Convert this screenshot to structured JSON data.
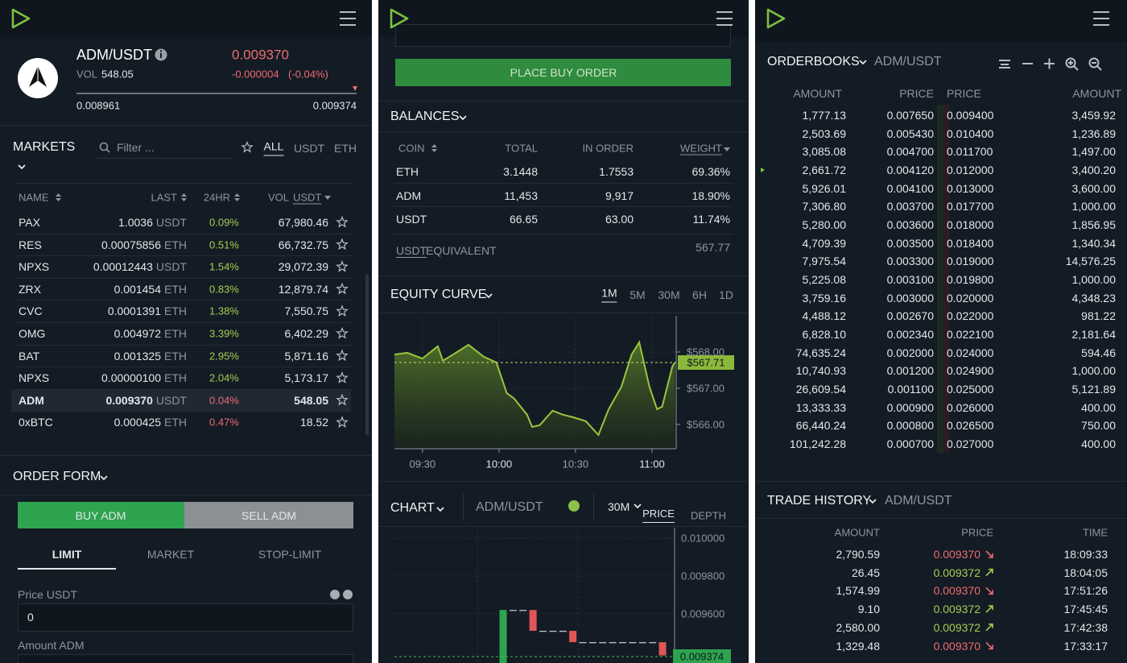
{
  "market_panel": {
    "ticker": {
      "pair": "ADM/USDT",
      "vol_label": "VOL",
      "volume": "548.05",
      "last": "0.009370",
      "change": "-0.000004",
      "change_pct": "(-0.04%)",
      "low": "0.008961",
      "high": "0.009374"
    },
    "markets": {
      "title": "MARKETS",
      "filter": "Filter ...",
      "tabs": [
        "ALL",
        "USDT",
        "ETH"
      ],
      "columns": [
        "NAME",
        "LAST",
        "24HR",
        "VOL"
      ],
      "vol_unit": "USDT",
      "selected": 8,
      "rows": [
        {
          "name": "PAX",
          "last": "1.0036",
          "unit": "USDT",
          "change": "0.09%",
          "volume": "67,980.46",
          "trend": "up"
        },
        {
          "name": "RES",
          "last": "0.00075856",
          "unit": "ETH",
          "change": "0.51%",
          "volume": "66,732.75",
          "trend": "up"
        },
        {
          "name": "NPXS",
          "last": "0.00012443",
          "unit": "USDT",
          "change": "1.54%",
          "volume": "29,072.39",
          "trend": "up"
        },
        {
          "name": "ZRX",
          "last": "0.001454",
          "unit": "ETH",
          "change": "0.83%",
          "volume": "12,879.74",
          "trend": "up"
        },
        {
          "name": "CVC",
          "last": "0.0001391",
          "unit": "ETH",
          "change": "1.38%",
          "volume": "7,550.75",
          "trend": "up"
        },
        {
          "name": "OMG",
          "last": "0.004972",
          "unit": "ETH",
          "change": "3.39%",
          "volume": "6,402.29",
          "trend": "up"
        },
        {
          "name": "BAT",
          "last": "0.001325",
          "unit": "ETH",
          "change": "2.95%",
          "volume": "5,871.16",
          "trend": "up"
        },
        {
          "name": "NPXS",
          "last": "0.00000100",
          "unit": "ETH",
          "change": "2.04%",
          "volume": "5,173.17",
          "trend": "up"
        },
        {
          "name": "ADM",
          "last": "0.009370",
          "unit": "USDT",
          "change": "0.04%",
          "volume": "548.05",
          "trend": "dn"
        },
        {
          "name": "0xBTC",
          "last": "0.000425",
          "unit": "ETH",
          "change": "0.47%",
          "volume": "18.52",
          "trend": "dn"
        }
      ]
    },
    "order_form": {
      "title": "ORDER FORM",
      "buy": "BUY ADM",
      "sell": "SELL ADM",
      "types": [
        "LIMIT",
        "MARKET",
        "STOP-LIMIT"
      ],
      "price_label": "Price USDT",
      "price": "0",
      "amount_label": "Amount ADM"
    }
  },
  "trade_panel": {
    "place_order": "PLACE BUY ORDER",
    "balances": {
      "title": "BALANCES",
      "columns": [
        "COIN",
        "TOTAL",
        "IN ORDER",
        "WEIGHT"
      ],
      "rows": [
        [
          "ETH",
          "3.1448",
          "1.7553",
          "69.36%"
        ],
        [
          "ADM",
          "11,453",
          "9,917",
          "18.90%"
        ],
        [
          "USDT",
          "66.65",
          "63.00",
          "11.74%"
        ]
      ],
      "equivalent_unit": "USDT",
      "equivalent_label": "EQUIVALENT",
      "equivalent": "567.77"
    },
    "equity_curve": {
      "title": "EQUITY CURVE",
      "ranges": [
        "1M",
        "5M",
        "30M",
        "6H",
        "1D"
      ],
      "chart": {
        "type": "line",
        "x": [
          559,
          564,
          570,
          576,
          578,
          582,
          588,
          594,
          599,
          603,
          606,
          611,
          613,
          616,
          621,
          625,
          629,
          634,
          639,
          643,
          648,
          652,
          655,
          659,
          662,
          664,
          668,
          669
        ],
        "values": [
          567.93,
          567.98,
          567.82,
          568.16,
          567.76,
          567.93,
          568.2,
          567.87,
          567.71,
          566.87,
          566.71,
          566.27,
          565.93,
          565.98,
          566.38,
          566.27,
          566.2,
          566.09,
          565.71,
          566.42,
          567.04,
          567.93,
          568.27,
          567.04,
          566.42,
          566.49,
          567.6,
          567.71
        ],
        "xlim": [
          559,
          669.5
        ],
        "ylim": [
          565.33,
          569
        ],
        "xticks": [
          {
            "value": 570,
            "label": "09:30"
          },
          {
            "value": 600,
            "label": "10:00"
          },
          {
            "value": 630,
            "label": "10:30"
          },
          {
            "value": 660,
            "label": "11:00"
          }
        ],
        "yticks": [
          {
            "value": 566,
            "label": "$566.00"
          },
          {
            "value": 567,
            "label": "$567.00"
          },
          {
            "value": 568,
            "label": "$568.00"
          }
        ],
        "current": {
          "value": 567.71,
          "label": "$567.71"
        },
        "color": "#9bc53d"
      }
    },
    "chart": {
      "title": "CHART",
      "pair": "ADM/USDT",
      "interval": "30M",
      "views": [
        "PRICE",
        "DEPTH"
      ],
      "candles": {
        "type": "candlestick",
        "open": [
          0.00934,
          0.00962,
          0.00962,
          0.00962,
          0.00951,
          0.00951,
          0.00951,
          0.00951,
          0.00945,
          0.00945,
          0.00945,
          0.00945,
          0.00945,
          0.00945,
          0.00945,
          0.00945,
          0.00945
        ],
        "close": [
          0.00962,
          0.00962,
          0.00962,
          0.00951,
          0.00951,
          0.00951,
          0.00951,
          0.00945,
          0.00945,
          0.00945,
          0.00945,
          0.00945,
          0.00945,
          0.00945,
          0.00945,
          0.00945,
          0.00938
        ],
        "ylim": [
          0.00934,
          0.010055
        ],
        "yticks": [
          {
            "value": 0.0096,
            "label": "0.009600"
          },
          {
            "value": 0.0098,
            "label": "0.009800"
          },
          {
            "value": 0.01,
            "label": "0.010000"
          }
        ],
        "current": {
          "value": 0.009374,
          "label": "0.009374"
        }
      }
    }
  },
  "book_panel": {
    "orderbook": {
      "title": "ORDERBOOKS",
      "pair": "ADM/USDT",
      "columns": [
        "AMOUNT",
        "PRICE",
        "PRICE",
        "AMOUNT"
      ],
      "rows": [
        [
          "1,777.13",
          "0.007650",
          "0.009400",
          "3,459.92"
        ],
        [
          "2,503.69",
          "0.005430",
          "0.010400",
          "1,236.89"
        ],
        [
          "3,085.08",
          "0.004700",
          "0.011700",
          "1,497.00"
        ],
        [
          "2,661.72",
          "0.004120",
          "0.012000",
          "3,400.20"
        ],
        [
          "5,926.01",
          "0.004100",
          "0.013000",
          "3,600.00"
        ],
        [
          "7,306.80",
          "0.003700",
          "0.017700",
          "1,000.00"
        ],
        [
          "5,280.00",
          "0.003600",
          "0.018000",
          "1,856.95"
        ],
        [
          "4,709.39",
          "0.003500",
          "0.018400",
          "1,340.34"
        ],
        [
          "7,975.54",
          "0.003300",
          "0.019000",
          "14,576.25"
        ],
        [
          "5,225.08",
          "0.003100",
          "0.019800",
          "1,000.00"
        ],
        [
          "3,759.16",
          "0.003000",
          "0.020000",
          "4,348.23"
        ],
        [
          "4,488.12",
          "0.002670",
          "0.022000",
          "981.22"
        ],
        [
          "6,828.10",
          "0.002340",
          "0.022100",
          "2,181.64"
        ],
        [
          "74,635.24",
          "0.002000",
          "0.024000",
          "594.46"
        ],
        [
          "10,740.93",
          "0.001200",
          "0.024900",
          "1,000.00"
        ],
        [
          "26,609.54",
          "0.001100",
          "0.025000",
          "5,121.89"
        ],
        [
          "13,333.33",
          "0.000900",
          "0.026000",
          "400.00"
        ],
        [
          "66,440.24",
          "0.000800",
          "0.026500",
          "750.00"
        ],
        [
          "101,242.28",
          "0.000700",
          "0.027000",
          "400.00"
        ]
      ]
    },
    "trade_history": {
      "title": "TRADE HISTORY",
      "pair": "ADM/USDT",
      "columns": [
        "AMOUNT",
        "PRICE",
        "TIME"
      ],
      "rows": [
        {
          "amount": "2,790.59",
          "price": "0.009370",
          "time": "18:09:33",
          "trend": "dn"
        },
        {
          "amount": "26.45",
          "price": "0.009372",
          "time": "18:04:05",
          "trend": "up"
        },
        {
          "amount": "1,574.99",
          "price": "0.009370",
          "time": "17:51:26",
          "trend": "dn"
        },
        {
          "amount": "9.10",
          "price": "0.009372",
          "time": "17:45:45",
          "trend": "up"
        },
        {
          "amount": "2,580.00",
          "price": "0.009372",
          "time": "17:42:38",
          "trend": "up"
        },
        {
          "amount": "1,329.48",
          "price": "0.009370",
          "time": "17:33:17",
          "trend": "dn"
        }
      ]
    }
  }
}
